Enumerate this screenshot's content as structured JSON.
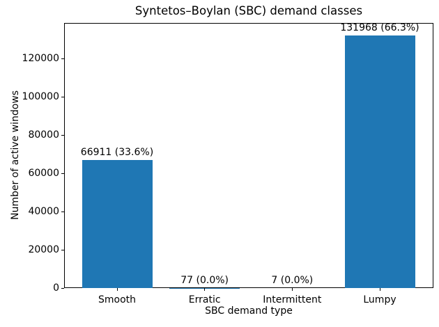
{
  "chart_data": {
    "type": "bar",
    "title": "Syntetos–Boylan (SBC) demand classes",
    "xlabel": "SBC demand type",
    "ylabel": "Number of active windows",
    "categories": [
      "Smooth",
      "Erratic",
      "Intermittent",
      "Lumpy"
    ],
    "values": [
      66911,
      77,
      7,
      131968
    ],
    "percentages": [
      33.6,
      0.0,
      0.0,
      66.3
    ],
    "bar_labels": [
      "66911 (33.6%)",
      "77 (0.0%)",
      "7 (0.0%)",
      "131968 (66.3%)"
    ],
    "yticks": [
      0,
      20000,
      40000,
      60000,
      80000,
      100000,
      120000
    ],
    "ytick_labels": [
      "0",
      "20000",
      "40000",
      "60000",
      "80000",
      "100000",
      "120000"
    ],
    "ylim": [
      0,
      138566
    ],
    "bar_color": "#1f77b4",
    "axis_color": "#000000",
    "grid": false,
    "legend_position": "none"
  }
}
